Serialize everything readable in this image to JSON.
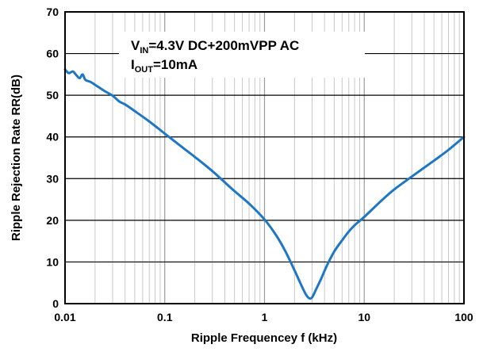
{
  "chart_data": {
    "type": "line",
    "x_scale": "log",
    "xlim": [
      0.01,
      100
    ],
    "ylim": [
      0,
      70
    ],
    "grid": true,
    "xlabel": "Ripple Frequencey f (kHz)",
    "ylabel": "Ripple Rejection Rate RR(dB)",
    "x_tick_labels": [
      "0.01",
      "0.1",
      "1",
      "10",
      "100"
    ],
    "y_tick_labels": [
      "0",
      "10",
      "20",
      "30",
      "40",
      "50",
      "60",
      "70"
    ],
    "annotation": {
      "line1_prefix": "V",
      "line1_sub": "IN",
      "line1_rest": "=4.3V DC+200mVPP AC",
      "line2_prefix": "I",
      "line2_sub": "OUT",
      "line2_rest": "=10mA"
    },
    "line_color": "#1f77c4",
    "series": [
      {
        "x": [
          0.01,
          0.0105,
          0.011,
          0.012,
          0.013,
          0.014,
          0.015,
          0.016,
          0.018,
          0.02,
          0.025,
          0.03,
          0.035,
          0.04,
          0.05,
          0.07,
          0.1,
          0.15,
          0.2,
          0.3,
          0.5,
          0.7,
          1,
          1.3,
          1.6,
          2,
          2.3,
          2.6,
          2.8,
          3.0,
          3.3,
          3.7,
          4.2,
          5,
          6,
          7,
          8,
          10,
          15,
          20,
          30,
          50,
          70,
          100
        ],
        "y": [
          56.2,
          55.6,
          55.3,
          55.7,
          54.8,
          54.1,
          55.0,
          53.7,
          53.2,
          52.5,
          51.0,
          49.9,
          48.5,
          47.8,
          46.2,
          43.7,
          40.8,
          37.5,
          35.2,
          31.8,
          27.0,
          24.0,
          20.2,
          16.5,
          12.8,
          8.0,
          4.8,
          2.2,
          1.3,
          1.5,
          3.5,
          6.0,
          9.0,
          12.5,
          15.2,
          17.3,
          18.8,
          20.8,
          24.8,
          27.4,
          30.5,
          34.3,
          36.9,
          40.0
        ]
      }
    ]
  }
}
